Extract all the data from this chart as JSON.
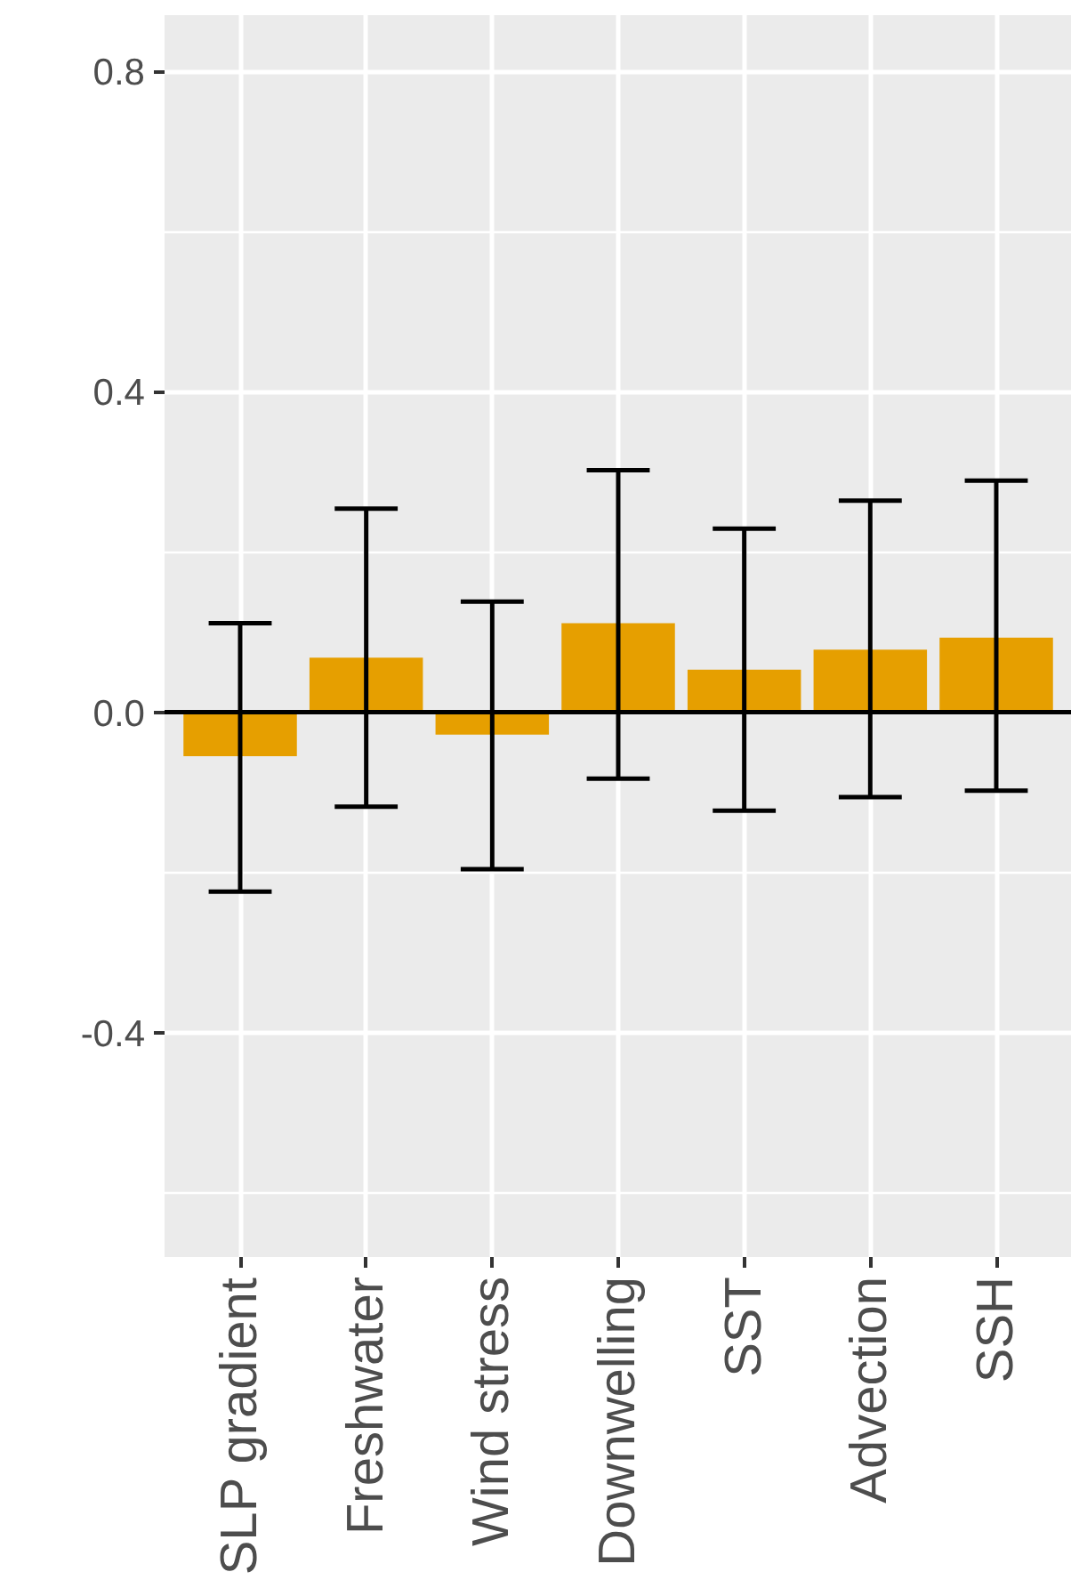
{
  "chart_data": {
    "type": "bar",
    "categories": [
      "SLP gradient",
      "Freshwater",
      "Wind stress",
      "Downwelling",
      "SST",
      "Advection",
      "SSH"
    ],
    "values": [
      -0.055,
      0.068,
      -0.028,
      0.111,
      0.053,
      0.078,
      0.093
    ],
    "color": "#e69f00",
    "errors": [
      [
        -0.224,
        0.111
      ],
      [
        -0.118,
        0.254
      ],
      [
        -0.196,
        0.138
      ],
      [
        -0.083,
        0.302
      ],
      [
        -0.123,
        0.229
      ],
      [
        -0.106,
        0.264
      ],
      [
        -0.098,
        0.289
      ]
    ],
    "ylim": [
      -0.68,
      0.87
    ],
    "yticks": [
      {
        "value": -0.4,
        "label": "-0.4"
      },
      {
        "value": 0,
        "label": "0.0"
      },
      {
        "value": 0.4,
        "label": "0.4"
      },
      {
        "value": 0.8,
        "label": "0.8"
      }
    ],
    "grid": true,
    "ref_lines": [
      {
        "axis": "y",
        "value": 0,
        "label": null,
        "color": "#000000"
      }
    ]
  }
}
